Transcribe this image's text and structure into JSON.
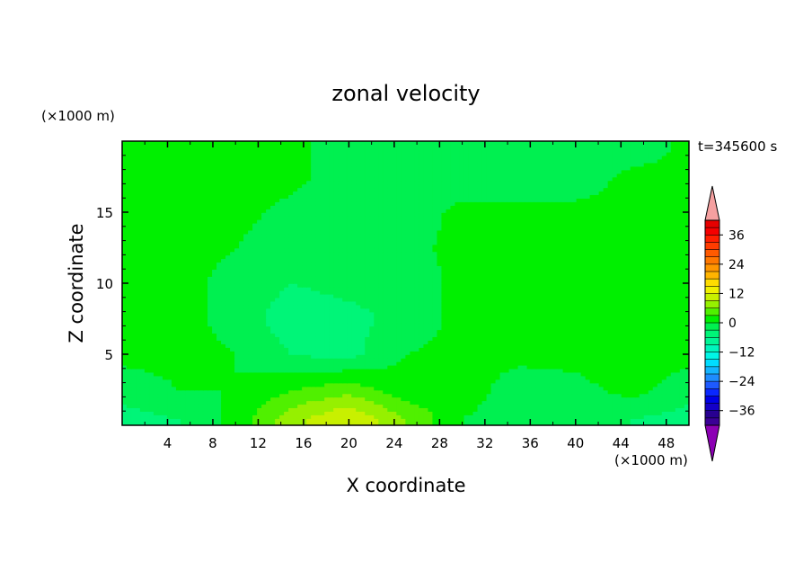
{
  "chart_data": {
    "type": "heatmap",
    "title": "zonal velocity",
    "xlabel": "X coordinate",
    "ylabel": "Z coordinate",
    "x_unit": "(×1000 m)",
    "y_unit": "(×1000 m)",
    "time_label": "t=345600 s",
    "xlim": [
      0,
      50
    ],
    "ylim": [
      0,
      20
    ],
    "x_ticks": [
      4,
      8,
      12,
      16,
      20,
      24,
      28,
      32,
      36,
      40,
      44,
      48
    ],
    "y_ticks": [
      5,
      10,
      15
    ],
    "colorbar": {
      "levels": [
        -42,
        -39,
        -36,
        -33,
        -30,
        -27,
        -24,
        -21,
        -18,
        -15,
        -12,
        -9,
        -6,
        -3,
        0,
        3,
        6,
        9,
        12,
        15,
        18,
        21,
        24,
        27,
        30,
        33,
        36,
        39,
        42
      ],
      "colors": [
        "#3b0096",
        "#280090",
        "#1400c8",
        "#0000e6",
        "#0a28ff",
        "#1e5aff",
        "#1e8cff",
        "#14b4ff",
        "#00dcff",
        "#00f5e6",
        "#00f5be",
        "#00f596",
        "#00f578",
        "#00f050",
        "#00f000",
        "#50f000",
        "#96f000",
        "#c8f000",
        "#f0f000",
        "#ffdc00",
        "#ffb400",
        "#ff9600",
        "#ff7800",
        "#ff5a00",
        "#ff3c00",
        "#ff1e00",
        "#f50000",
        "#e60000"
      ],
      "under_color": "#8c00b4",
      "over_color": "#f5a0a0",
      "tick_labels": [
        "36",
        "24",
        "12",
        "0",
        "-12",
        "-24",
        "-36"
      ]
    },
    "field_description_grid": {
      "x": [
        0,
        5,
        10,
        15,
        20,
        25,
        30,
        35,
        40,
        45,
        50
      ],
      "z": [
        0.5,
        2.5,
        5,
        7.5,
        10,
        12.5,
        15,
        17.5,
        19.5
      ],
      "values": [
        [
          -4,
          -3,
          1,
          8,
          12,
          6,
          0,
          -2,
          -3,
          -3,
          -4
        ],
        [
          -2,
          0,
          0,
          3,
          5,
          1,
          2,
          -2,
          -1,
          1,
          -2
        ],
        [
          1,
          1,
          0,
          -3,
          -4,
          0,
          1,
          1,
          1,
          2,
          1
        ],
        [
          1,
          1,
          -1,
          -5,
          -4,
          -2,
          1,
          1,
          1,
          1,
          1
        ],
        [
          1,
          1,
          -1,
          -3,
          -2,
          -2,
          1,
          1,
          1,
          1,
          1
        ],
        [
          1,
          1,
          0,
          -2,
          -2,
          -1,
          1,
          1,
          1,
          1,
          1
        ],
        [
          1,
          1,
          1,
          -1,
          -2,
          -2,
          1,
          1,
          1,
          1,
          1
        ],
        [
          1,
          1,
          1,
          1,
          -2,
          -2,
          -2,
          -2,
          -2,
          1,
          1
        ],
        [
          1,
          1,
          1,
          1,
          -2,
          -3,
          -2,
          -2,
          -2,
          -2,
          1
        ]
      ]
    }
  }
}
